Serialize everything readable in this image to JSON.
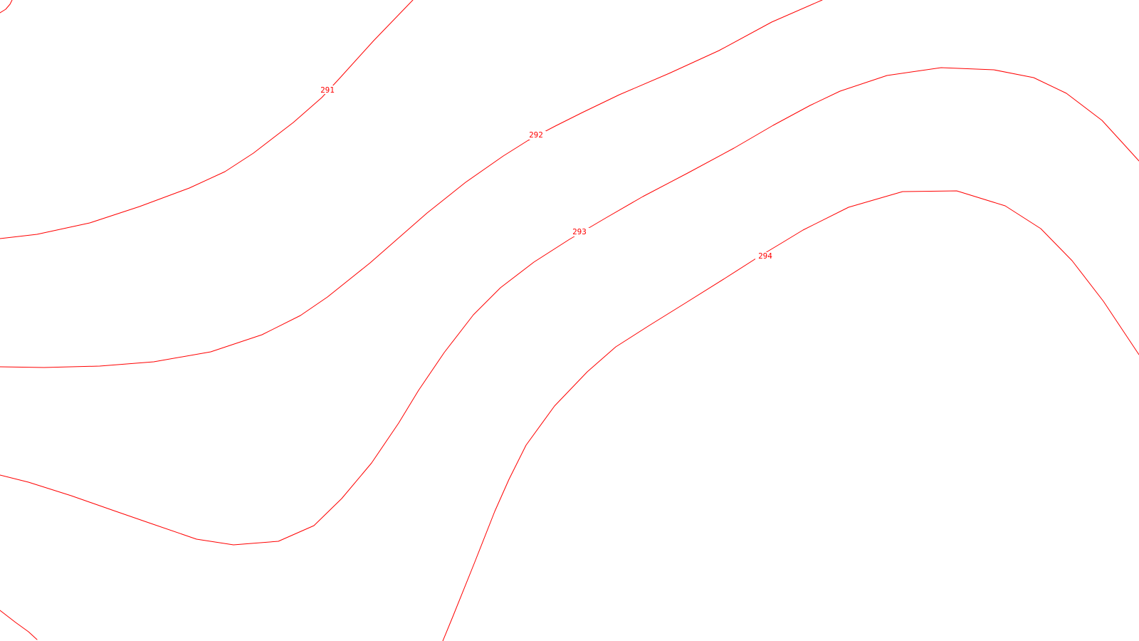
{
  "map": {
    "line_color": "#ff0000",
    "background": "#ffffff",
    "contours": [
      {
        "name": "contour-291",
        "label": "291"
      },
      {
        "name": "contour-292",
        "label": "292"
      },
      {
        "name": "contour-293",
        "label": "293"
      },
      {
        "name": "contour-294",
        "label": "294"
      }
    ]
  }
}
